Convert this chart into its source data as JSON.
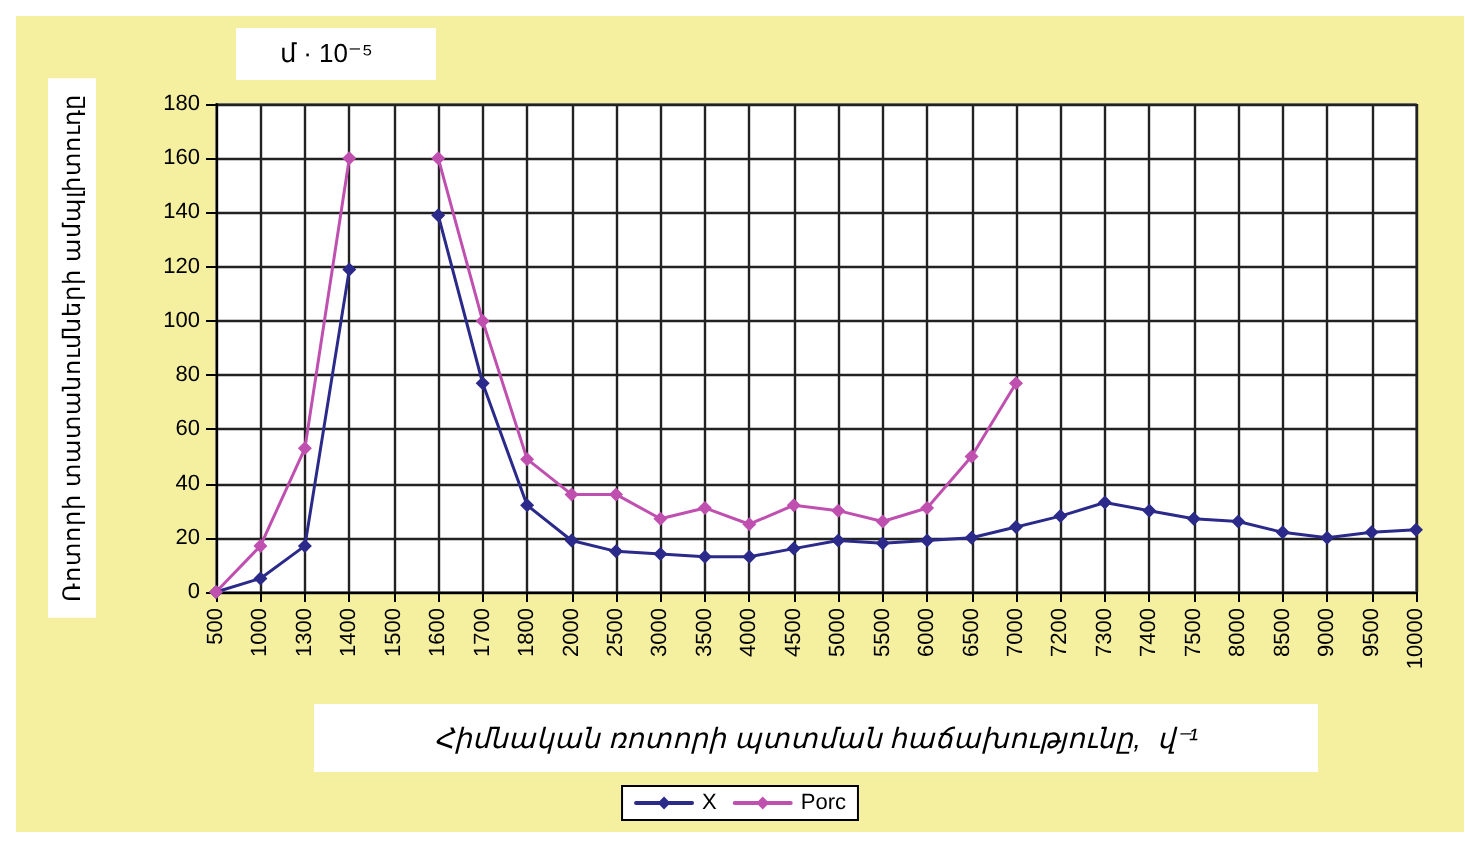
{
  "chart_data": {
    "type": "line",
    "categories": [
      "500",
      "1000",
      "1300",
      "1400",
      "1500",
      "1600",
      "1700",
      "1800",
      "2000",
      "2500",
      "3000",
      "3500",
      "4000",
      "4500",
      "5000",
      "5500",
      "6000",
      "6500",
      "7000",
      "7200",
      "7300",
      "7400",
      "7500",
      "8000",
      "8500",
      "9000",
      "9500",
      "10000"
    ],
    "series": [
      {
        "name": "X",
        "color": "#2b2a8a",
        "values": [
          0,
          5,
          17,
          119,
          null,
          139,
          77,
          32,
          19,
          15,
          14,
          13,
          13,
          16,
          19,
          18,
          19,
          20,
          24,
          28,
          33,
          30,
          27,
          26,
          22,
          20,
          22,
          23
        ]
      },
      {
        "name": "Porc",
        "color": "#c050b0",
        "values": [
          0,
          17,
          53,
          160,
          null,
          160,
          100,
          49,
          36,
          36,
          27,
          31,
          25,
          32,
          30,
          26,
          31,
          50,
          77,
          null,
          null,
          null,
          null,
          null,
          null,
          null,
          null,
          null
        ]
      }
    ],
    "ylim": [
      0,
      180
    ],
    "yticks": [
      0,
      20,
      40,
      60,
      80,
      100,
      120,
      140,
      160,
      180
    ],
    "ylabel": "Ռոտորի տատանումների ամպլիտուդը",
    "xlabel": "Հիմնական ռոտորի պտտման հաճախությունը,  վ⁻¹",
    "annotations": [
      "մ · 10⁻⁵"
    ],
    "grid": true,
    "legend": "bottom",
    "marker": "diamond",
    "line_style": "solid"
  }
}
